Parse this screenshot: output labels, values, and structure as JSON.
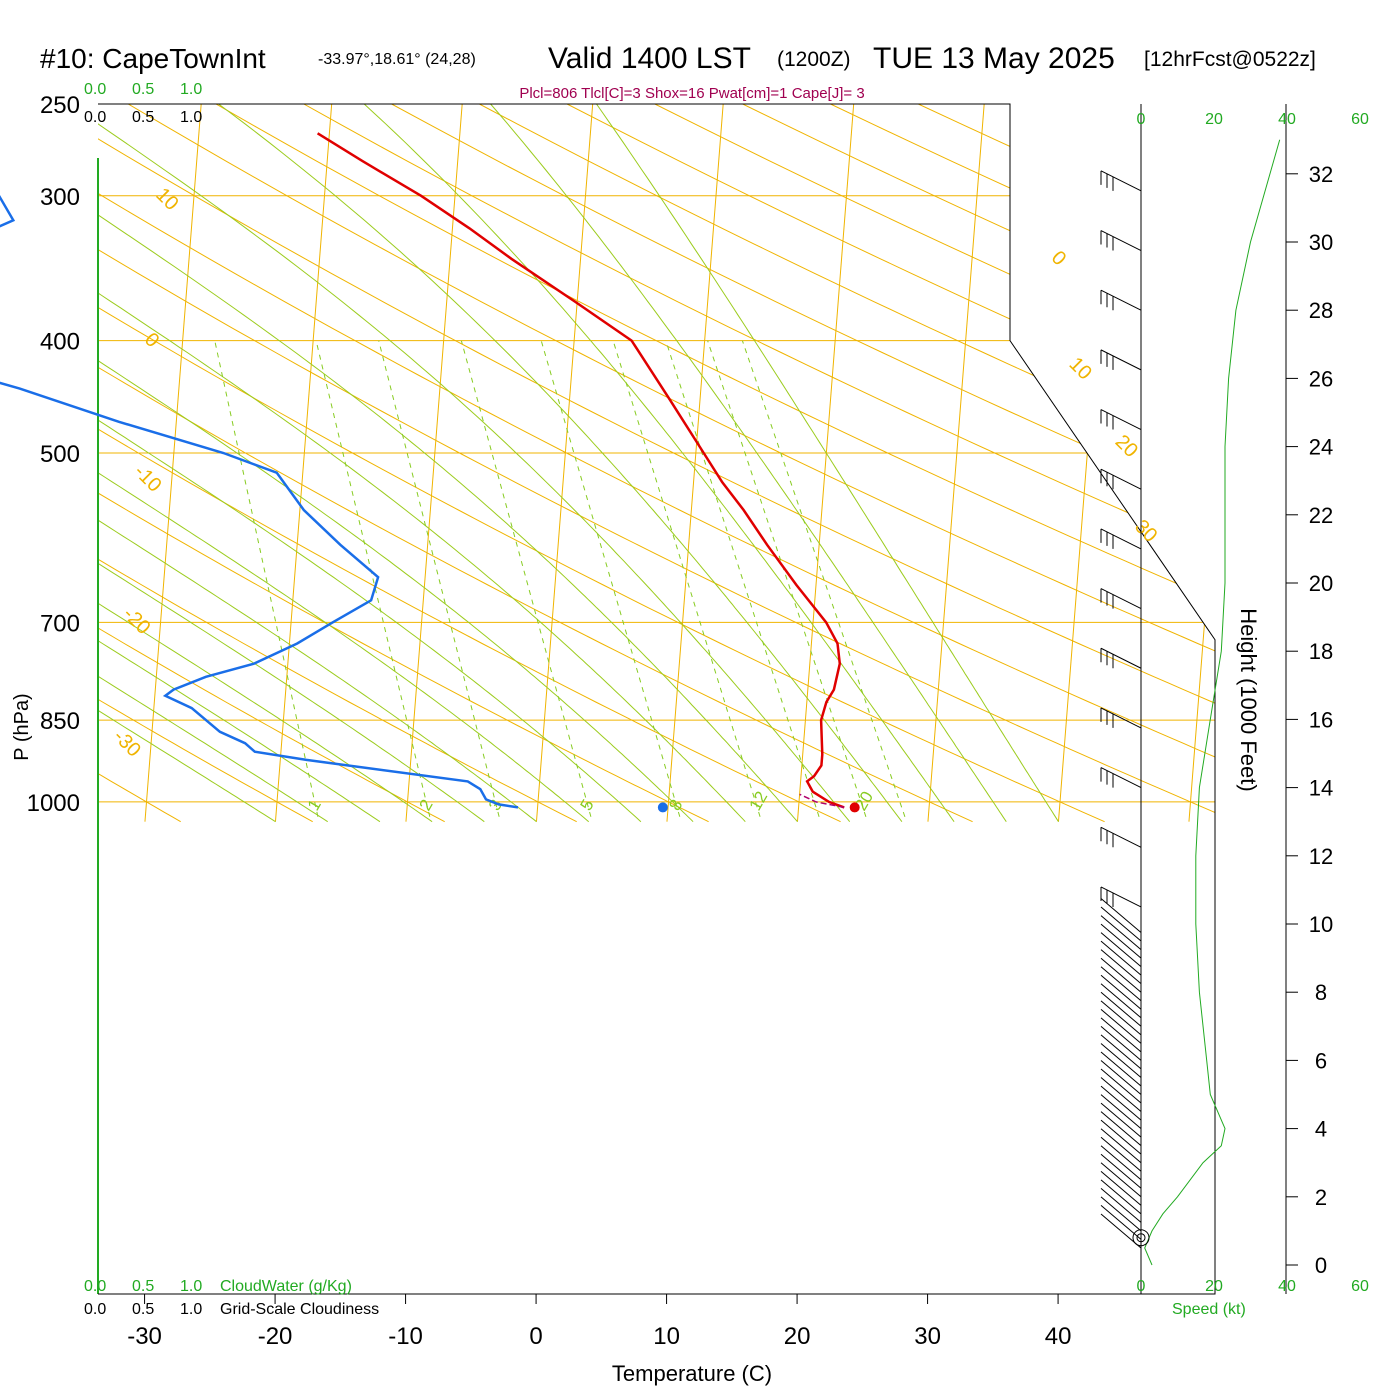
{
  "header": {
    "station": "#10: CapeTownInt",
    "coords": "-33.97°,18.61° (24,28)",
    "valid": "Valid 1400 LST",
    "utc": "(1200Z)",
    "date": "TUE 13 May 2025",
    "forecast": "[12hrFcst@0522z]",
    "indices": "Plcl=806 Tlcl[C]=3 Shox=16 Pwat[cm]=1 Cape[J]= 3"
  },
  "labels": {
    "y_axis": "P (hPa)",
    "x_axis": "Temperature (C)",
    "height_axis": "Height (1000 Feet)",
    "cloudwater": "CloudWater (g/Kg)",
    "cloudiness": "Grid-Scale Cloudiness",
    "speed": "Speed (kt)"
  },
  "colors": {
    "isobar": "#f0b400",
    "dry_adiabat": "#f0b400",
    "moist_adiabat": "#9ccc1e",
    "mixing_ratio": "#88cc22",
    "temperature": "#e00000",
    "dewpoint": "#1a6ee8",
    "parcel": "#b0006a",
    "cloud_axis": "#22aa22",
    "wind_speed": "#22aa22",
    "indices_text": "#a00050"
  },
  "chart_data": {
    "type": "line",
    "title": "#10: CapeTownInt Valid 1400 LST (1200Z) TUE 13 May 2025",
    "xlabel": "Temperature (C)",
    "ylabel": "P (hPa)",
    "y_scale": "log",
    "ylim": [
      1030,
      250
    ],
    "xlim": [
      -34,
      46
    ],
    "pressure_ticks": [
      "250",
      "300",
      "400",
      "500",
      "700",
      "850",
      "1000"
    ],
    "pressure_values": [
      250,
      300,
      400,
      500,
      700,
      850,
      1000
    ],
    "temperature_ticks": [
      "-30",
      "-20",
      "-10",
      "0",
      "10",
      "20",
      "30",
      "40"
    ],
    "temperature_values": [
      -30,
      -20,
      -10,
      0,
      10,
      20,
      30,
      40
    ],
    "dry_adiabat_labels": [
      {
        "text": "10",
        "p": 300,
        "t": -33
      },
      {
        "text": "0",
        "p": 400,
        "t": -33
      },
      {
        "text": "-10",
        "p": 520,
        "t": -33
      },
      {
        "text": "-20",
        "p": 690,
        "t": -33
      },
      {
        "text": "-30",
        "p": 880,
        "t": -33
      },
      {
        "text": "0",
        "p": 340,
        "t": 36
      },
      {
        "text": "10",
        "p": 420,
        "t": 38
      },
      {
        "text": "20",
        "p": 490,
        "t": 42
      },
      {
        "text": "30",
        "p": 580,
        "t": 44
      }
    ],
    "mixing_ratio_labels": [
      "1",
      "2",
      "3",
      "5",
      "8",
      "12",
      "20"
    ],
    "mixing_ratio_values": [
      1,
      2,
      3,
      5,
      8,
      12,
      20
    ],
    "series": [
      {
        "name": "Temperature",
        "p": [
          1011,
          1000,
          980,
          960,
          950,
          930,
          910,
          890,
          850,
          820,
          800,
          760,
          730,
          700,
          650,
          600,
          560,
          530,
          500,
          450,
          400,
          370,
          340,
          320,
          300,
          280,
          265
        ],
        "t": [
          23.5,
          22.3,
          21.0,
          20.5,
          21.0,
          21.5,
          21.5,
          21.4,
          21.2,
          21.5,
          22.0,
          22.3,
          22.0,
          21.0,
          18.5,
          16.0,
          14.0,
          12.2,
          10.6,
          7.7,
          4.4,
          -0.2,
          -5.3,
          -8.7,
          -12.6,
          -17.3,
          -20.9
        ]
      },
      {
        "name": "Dewpoint",
        "p": [
          1011,
          1005,
          995,
          975,
          960,
          920,
          905,
          890,
          870,
          830,
          810,
          800,
          780,
          760,
          730,
          700,
          670,
          640,
          600,
          560,
          520,
          500,
          470,
          440,
          400,
          370,
          350,
          330,
          315,
          290,
          270
        ],
        "t": [
          -1.5,
          -3.0,
          -4.0,
          -4.5,
          -5.5,
          -18.0,
          -22.0,
          -22.8,
          -24.8,
          -27.1,
          -29.2,
          -28.6,
          -26.2,
          -22.6,
          -19.4,
          -16.8,
          -14.0,
          -13.6,
          -16.7,
          -19.7,
          -22.0,
          -26.2,
          -34.4,
          -42.2,
          -55.2,
          -53.6,
          -51.8,
          -47.7,
          -43.7,
          -45.8,
          -52.7
        ]
      },
      {
        "name": "Parcel",
        "p": [
          1011,
          1000,
          985
        ],
        "t": [
          23.5,
          21.3,
          20.0
        ]
      }
    ],
    "surface": {
      "temperature": 24.3,
      "dewpoint": 9.6
    },
    "cloudwater_ticks": [
      "0.0",
      "0.5",
      "1.0"
    ],
    "cloudiness_ticks": [
      "0.0",
      "0.5",
      "1.0"
    ],
    "wind": {
      "speed_ticks": [
        "0",
        "20",
        "40",
        "60"
      ],
      "speed_values": [
        0,
        20,
        40,
        60
      ],
      "height_ticks": [
        "0",
        "2",
        "4",
        "6",
        "8",
        "10",
        "12",
        "14",
        "16",
        "18",
        "20",
        "22",
        "24",
        "26",
        "28",
        "30",
        "32"
      ],
      "height_values": [
        0,
        2,
        4,
        6,
        8,
        10,
        12,
        14,
        16,
        18,
        20,
        22,
        24,
        26,
        28,
        30,
        32
      ],
      "profile": [
        {
          "h": 0.0,
          "speed": 3
        },
        {
          "h": 0.5,
          "speed": 1
        },
        {
          "h": 1.0,
          "speed": 3
        },
        {
          "h": 1.5,
          "speed": 6
        },
        {
          "h": 2.0,
          "speed": 10
        },
        {
          "h": 3.0,
          "speed": 17
        },
        {
          "h": 3.5,
          "speed": 22
        },
        {
          "h": 4.0,
          "speed": 23
        },
        {
          "h": 5.0,
          "speed": 19
        },
        {
          "h": 6.0,
          "speed": 18
        },
        {
          "h": 8.0,
          "speed": 16
        },
        {
          "h": 10.0,
          "speed": 15
        },
        {
          "h": 12.0,
          "speed": 15
        },
        {
          "h": 14.0,
          "speed": 16
        },
        {
          "h": 16.0,
          "speed": 19
        },
        {
          "h": 18.0,
          "speed": 22
        },
        {
          "h": 20.0,
          "speed": 23
        },
        {
          "h": 22.0,
          "speed": 23
        },
        {
          "h": 24.0,
          "speed": 23
        },
        {
          "h": 26.0,
          "speed": 24
        },
        {
          "h": 28.0,
          "speed": 26
        },
        {
          "h": 30.0,
          "speed": 30
        },
        {
          "h": 33.0,
          "speed": 38
        }
      ]
    }
  }
}
